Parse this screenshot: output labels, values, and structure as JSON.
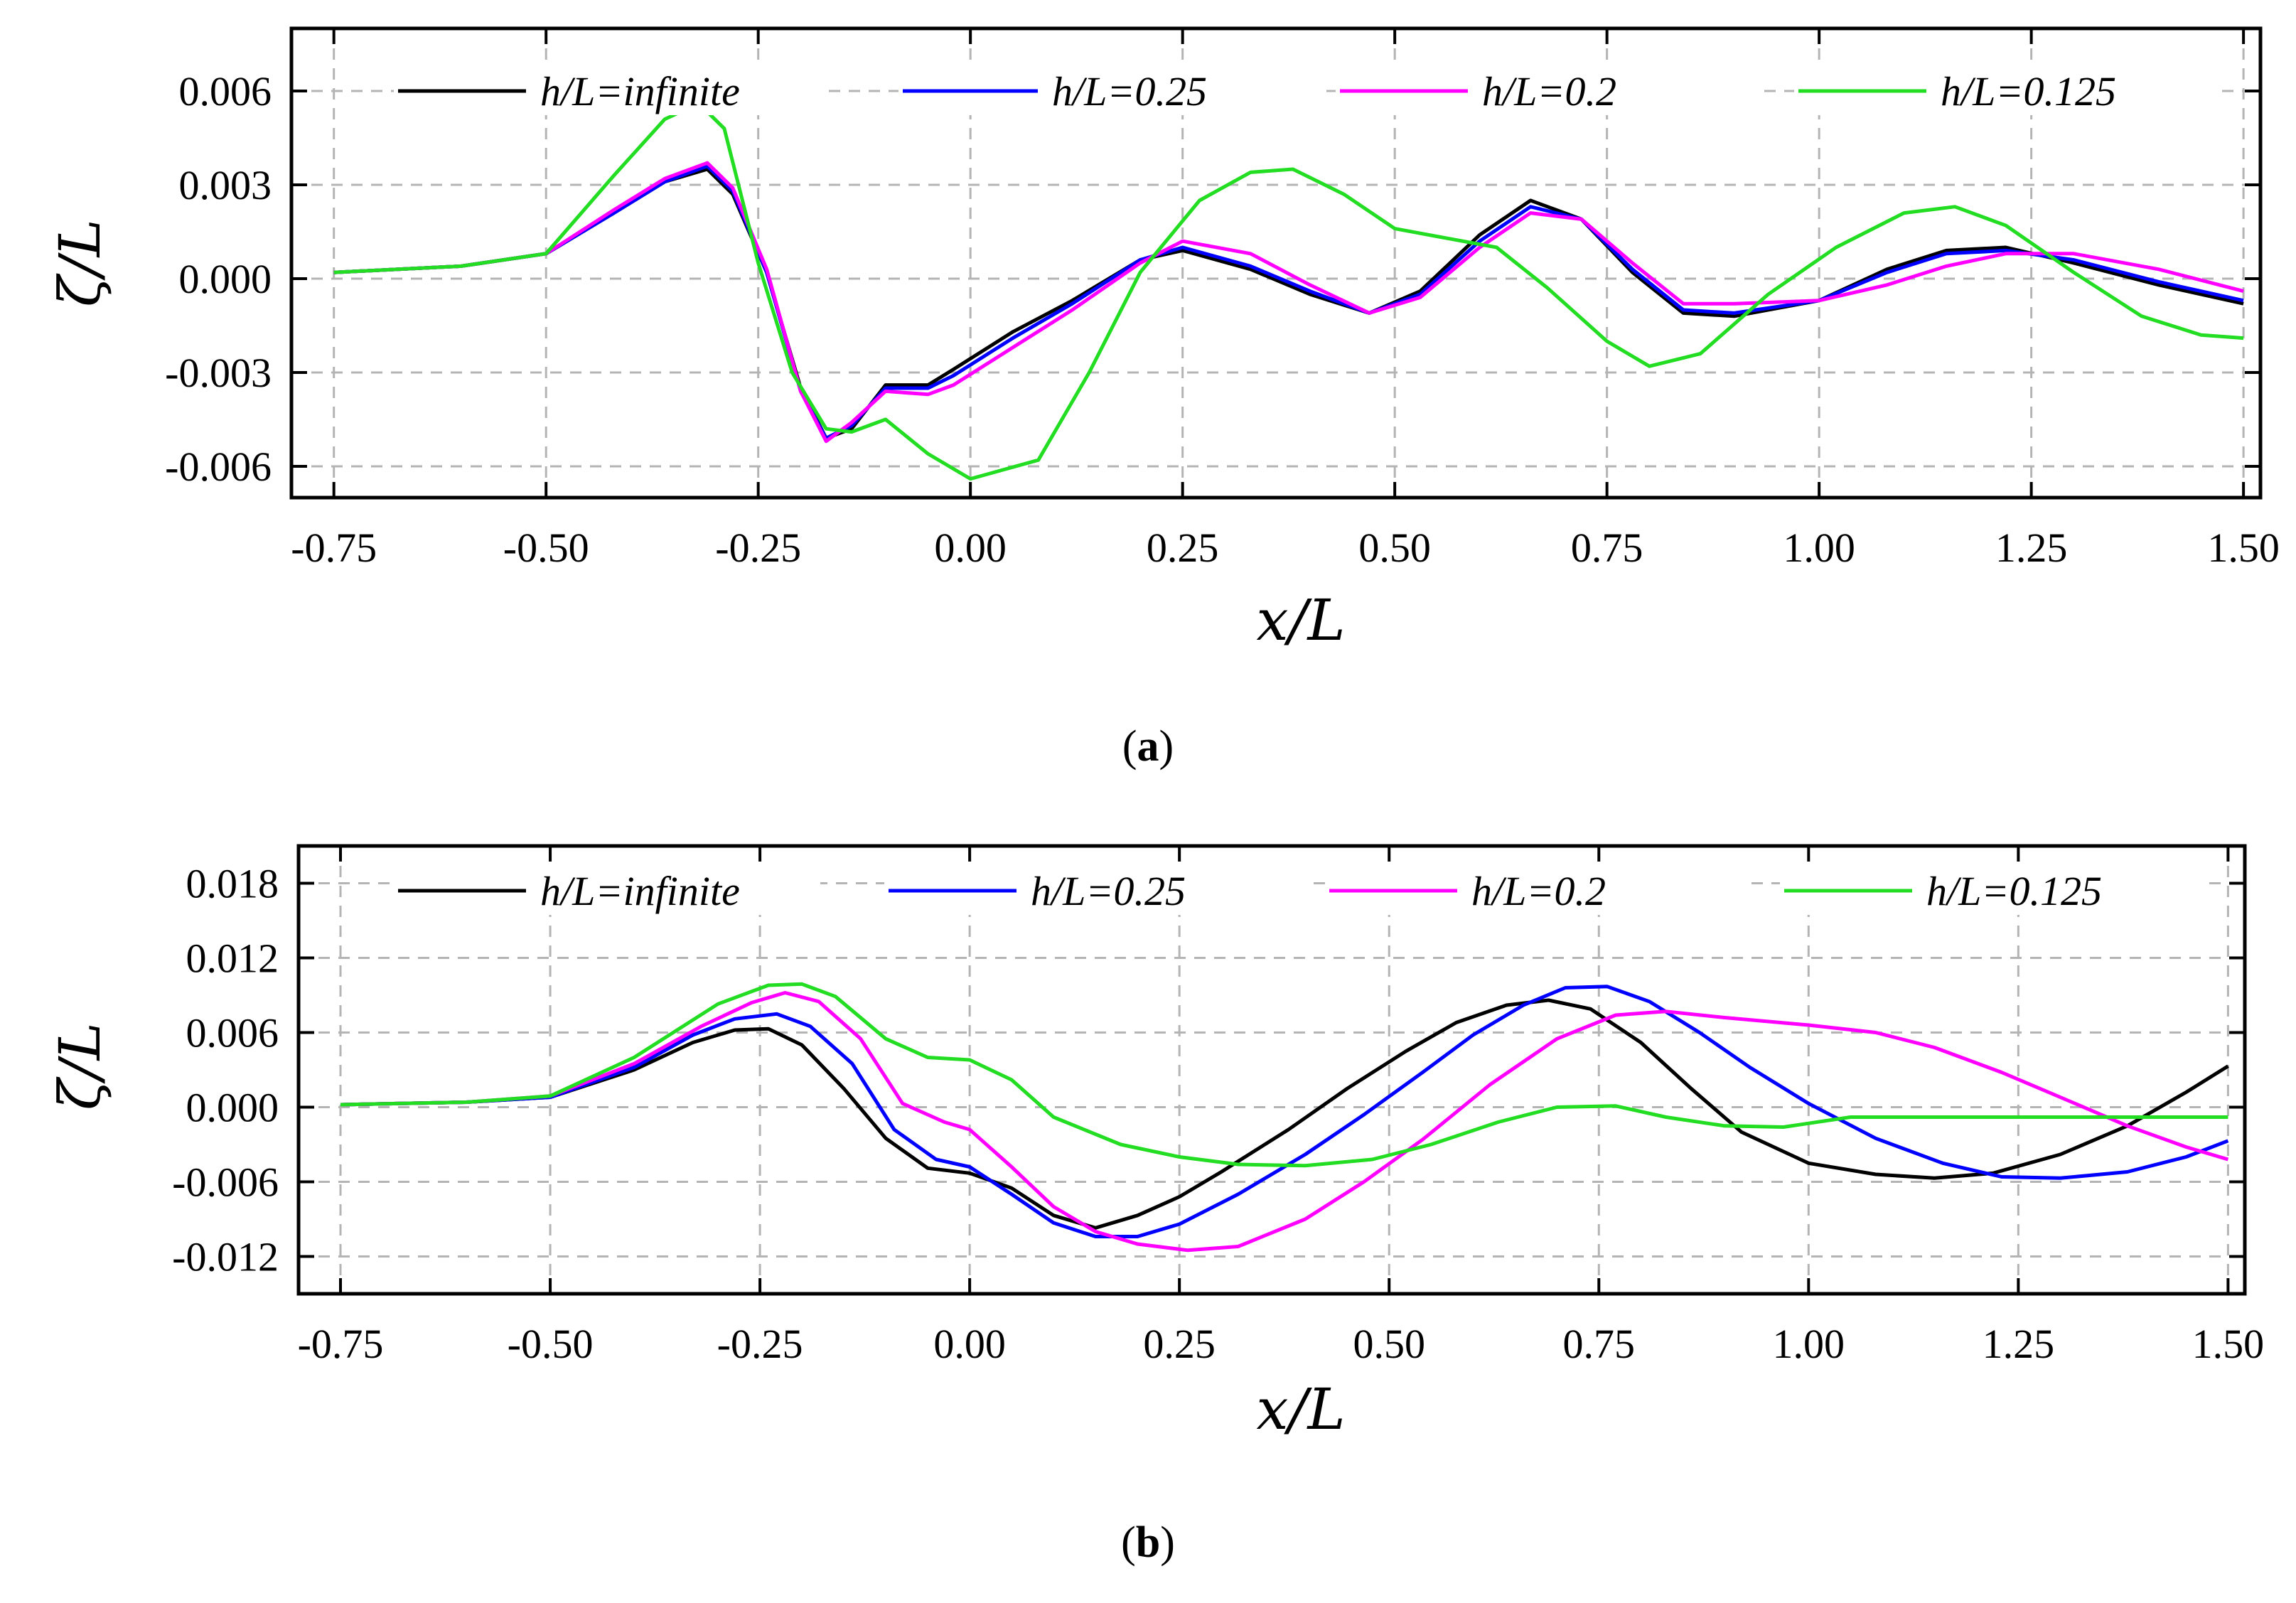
{
  "chart_data": [
    {
      "type": "line",
      "panel_label": "a",
      "xlabel": "x/L",
      "ylabel": "ζ/L",
      "xlim": [
        -0.8,
        1.52
      ],
      "ylim": [
        -0.007,
        0.008
      ],
      "xticks": [
        -0.75,
        -0.5,
        -0.25,
        0.0,
        0.25,
        0.5,
        0.75,
        1.0,
        1.25,
        1.5
      ],
      "xtick_labels": [
        "-0.75",
        "-0.50",
        "-0.25",
        "0.00",
        "0.25",
        "0.50",
        "0.75",
        "1.00",
        "1.25",
        "1.50"
      ],
      "yticks": [
        -0.006,
        -0.003,
        0.0,
        0.003,
        0.006
      ],
      "ytick_labels": [
        "-0.006",
        "-0.003",
        "0.000",
        "0.003",
        "0.006"
      ],
      "grid": true,
      "legend_position": "top",
      "series": [
        {
          "name": "h/L=infinite",
          "color": "#000000",
          "x": [
            -0.75,
            -0.6,
            -0.5,
            -0.42,
            -0.36,
            -0.31,
            -0.28,
            -0.24,
            -0.2,
            -0.17,
            -0.14,
            -0.1,
            -0.05,
            -0.02,
            0.05,
            0.12,
            0.2,
            0.25,
            0.33,
            0.4,
            0.47,
            0.53,
            0.6,
            0.66,
            0.72,
            0.78,
            0.84,
            0.9,
            1.0,
            1.08,
            1.15,
            1.22,
            1.3,
            1.4,
            1.5
          ],
          "y": [
            0.0002,
            0.0004,
            0.0008,
            0.0021,
            0.0031,
            0.0035,
            0.0027,
            0.0002,
            -0.0035,
            -0.0051,
            -0.0048,
            -0.0034,
            -0.0034,
            -0.0029,
            -0.0017,
            -0.0007,
            0.0006,
            0.0009,
            0.0003,
            -0.0005,
            -0.0011,
            -0.0004,
            0.0014,
            0.0025,
            0.0019,
            0.0002,
            -0.0011,
            -0.0012,
            -0.0007,
            0.0003,
            0.0009,
            0.001,
            0.0005,
            -0.0002,
            -0.0008
          ]
        },
        {
          "name": "h/L=0.25",
          "color": "#0000ff",
          "x": [
            -0.75,
            -0.6,
            -0.5,
            -0.42,
            -0.36,
            -0.31,
            -0.28,
            -0.24,
            -0.2,
            -0.17,
            -0.14,
            -0.1,
            -0.05,
            -0.02,
            0.05,
            0.12,
            0.2,
            0.25,
            0.33,
            0.4,
            0.47,
            0.53,
            0.6,
            0.66,
            0.72,
            0.78,
            0.84,
            0.9,
            1.0,
            1.08,
            1.15,
            1.22,
            1.3,
            1.4,
            1.5
          ],
          "y": [
            0.0002,
            0.0004,
            0.0008,
            0.0021,
            0.0031,
            0.0036,
            0.0028,
            0.0002,
            -0.0036,
            -0.0051,
            -0.0047,
            -0.0035,
            -0.0035,
            -0.0031,
            -0.0019,
            -0.0008,
            0.0006,
            0.001,
            0.0004,
            -0.0004,
            -0.0011,
            -0.0005,
            0.0012,
            0.0023,
            0.0019,
            0.0003,
            -0.001,
            -0.0011,
            -0.0007,
            0.0002,
            0.0008,
            0.0009,
            0.0006,
            -0.0001,
            -0.0007
          ]
        },
        {
          "name": "h/L=0.2",
          "color": "#ff00ff",
          "x": [
            -0.75,
            -0.6,
            -0.5,
            -0.42,
            -0.36,
            -0.31,
            -0.28,
            -0.24,
            -0.2,
            -0.17,
            -0.14,
            -0.1,
            -0.05,
            -0.02,
            0.05,
            0.12,
            0.2,
            0.25,
            0.33,
            0.4,
            0.47,
            0.53,
            0.6,
            0.66,
            0.72,
            0.78,
            0.84,
            0.9,
            1.0,
            1.08,
            1.15,
            1.22,
            1.3,
            1.4,
            1.5
          ],
          "y": [
            0.0002,
            0.0004,
            0.0008,
            0.0022,
            0.0032,
            0.0037,
            0.0029,
            0.0003,
            -0.0036,
            -0.0052,
            -0.0046,
            -0.0036,
            -0.0037,
            -0.0034,
            -0.0022,
            -0.001,
            0.0005,
            0.0012,
            0.0008,
            -0.0002,
            -0.0011,
            -0.0006,
            0.001,
            0.0021,
            0.0019,
            0.0005,
            -0.0008,
            -0.0008,
            -0.0007,
            -0.0002,
            0.0004,
            0.0008,
            0.0008,
            0.0003,
            -0.0004
          ]
        },
        {
          "name": "h/L=0.125",
          "color": "#22dd22",
          "x": [
            -0.75,
            -0.6,
            -0.5,
            -0.42,
            -0.36,
            -0.32,
            -0.29,
            -0.25,
            -0.21,
            -0.17,
            -0.14,
            -0.1,
            -0.05,
            0.0,
            0.08,
            0.14,
            0.2,
            0.27,
            0.33,
            0.38,
            0.44,
            0.5,
            0.56,
            0.62,
            0.68,
            0.75,
            0.8,
            0.86,
            0.94,
            1.02,
            1.1,
            1.16,
            1.22,
            1.3,
            1.38,
            1.45,
            1.5
          ],
          "y": [
            0.0002,
            0.0004,
            0.0008,
            0.0033,
            0.0051,
            0.0056,
            0.0048,
            0.0005,
            -0.003,
            -0.0048,
            -0.0049,
            -0.0045,
            -0.0056,
            -0.0064,
            -0.0058,
            -0.003,
            0.0002,
            0.0025,
            0.0034,
            0.0035,
            0.0027,
            0.0016,
            0.0013,
            0.001,
            -0.0003,
            -0.002,
            -0.0028,
            -0.0024,
            -0.0005,
            0.001,
            0.0021,
            0.0023,
            0.0017,
            0.0002,
            -0.0012,
            -0.0018,
            -0.0019
          ]
        }
      ]
    },
    {
      "type": "line",
      "panel_label": "b",
      "xlabel": "x/L",
      "ylabel": "ζ/L",
      "xlim": [
        -0.8,
        1.52
      ],
      "ylim": [
        -0.015,
        0.021
      ],
      "xticks": [
        -0.75,
        -0.5,
        -0.25,
        0.0,
        0.25,
        0.5,
        0.75,
        1.0,
        1.25,
        1.5
      ],
      "xtick_labels": [
        "-0.75",
        "-0.50",
        "-0.25",
        "0.00",
        "0.25",
        "0.50",
        "0.75",
        "1.00",
        "1.25",
        "1.50"
      ],
      "yticks": [
        -0.012,
        -0.006,
        0.0,
        0.006,
        0.012,
        0.018
      ],
      "ytick_labels": [
        "-0.012",
        "-0.006",
        "0.000",
        "0.006",
        "0.012",
        "0.018"
      ],
      "grid": true,
      "legend_position": "top",
      "series": [
        {
          "name": "h/L=infinite",
          "color": "#000000",
          "x": [
            -0.75,
            -0.6,
            -0.5,
            -0.4,
            -0.33,
            -0.28,
            -0.24,
            -0.2,
            -0.15,
            -0.1,
            -0.05,
            0.0,
            0.05,
            0.1,
            0.15,
            0.2,
            0.25,
            0.3,
            0.38,
            0.45,
            0.52,
            0.58,
            0.64,
            0.69,
            0.74,
            0.8,
            0.86,
            0.92,
            1.0,
            1.08,
            1.15,
            1.22,
            1.3,
            1.38,
            1.45,
            1.5
          ],
          "y": [
            0.0002,
            0.0004,
            0.0008,
            0.003,
            0.0052,
            0.0062,
            0.0063,
            0.005,
            0.0015,
            -0.0025,
            -0.0049,
            -0.0053,
            -0.0065,
            -0.0087,
            -0.0097,
            -0.0087,
            -0.0072,
            -0.0052,
            -0.0018,
            0.0015,
            0.0045,
            0.0068,
            0.0082,
            0.0086,
            0.0079,
            0.0052,
            0.0015,
            -0.002,
            -0.0045,
            -0.0054,
            -0.0057,
            -0.0053,
            -0.0038,
            -0.0015,
            0.0012,
            0.0033
          ]
        },
        {
          "name": "h/L=0.25",
          "color": "#0000ff",
          "x": [
            -0.75,
            -0.6,
            -0.5,
            -0.4,
            -0.33,
            -0.28,
            -0.23,
            -0.19,
            -0.14,
            -0.09,
            -0.04,
            0.0,
            0.05,
            0.1,
            0.15,
            0.2,
            0.25,
            0.32,
            0.4,
            0.47,
            0.54,
            0.6,
            0.66,
            0.71,
            0.76,
            0.81,
            0.87,
            0.93,
            1.0,
            1.08,
            1.16,
            1.23,
            1.3,
            1.38,
            1.45,
            1.5
          ],
          "y": [
            0.0002,
            0.0004,
            0.0008,
            0.0032,
            0.0058,
            0.0071,
            0.0075,
            0.0065,
            0.0035,
            -0.0018,
            -0.0042,
            -0.0048,
            -0.007,
            -0.0093,
            -0.0104,
            -0.0104,
            -0.0094,
            -0.007,
            -0.0038,
            -0.0006,
            0.0028,
            0.0058,
            0.0082,
            0.0096,
            0.0097,
            0.0085,
            0.006,
            0.0032,
            0.0003,
            -0.0025,
            -0.0045,
            -0.0056,
            -0.0057,
            -0.0052,
            -0.004,
            -0.0027
          ]
        },
        {
          "name": "h/L=0.2",
          "color": "#ff00ff",
          "x": [
            -0.75,
            -0.6,
            -0.5,
            -0.4,
            -0.32,
            -0.26,
            -0.22,
            -0.18,
            -0.13,
            -0.08,
            -0.03,
            0.0,
            0.05,
            0.1,
            0.15,
            0.2,
            0.26,
            0.32,
            0.4,
            0.47,
            0.54,
            0.62,
            0.7,
            0.77,
            0.83,
            0.9,
            1.0,
            1.08,
            1.15,
            1.23,
            1.3,
            1.38,
            1.45,
            1.5
          ],
          "y": [
            0.0002,
            0.0004,
            0.0009,
            0.0035,
            0.0065,
            0.0084,
            0.0092,
            0.0085,
            0.0055,
            0.0003,
            -0.0012,
            -0.0018,
            -0.0048,
            -0.008,
            -0.01,
            -0.011,
            -0.0115,
            -0.0112,
            -0.009,
            -0.006,
            -0.0026,
            0.0018,
            0.0055,
            0.0074,
            0.0077,
            0.0072,
            0.0066,
            0.006,
            0.0048,
            0.0028,
            0.0008,
            -0.0015,
            -0.0032,
            -0.0042
          ]
        },
        {
          "name": "h/L=0.125",
          "color": "#22dd22",
          "x": [
            -0.75,
            -0.6,
            -0.5,
            -0.4,
            -0.3,
            -0.24,
            -0.2,
            -0.16,
            -0.1,
            -0.05,
            0.0,
            0.05,
            0.1,
            0.18,
            0.25,
            0.32,
            0.4,
            0.48,
            0.55,
            0.63,
            0.7,
            0.77,
            0.83,
            0.9,
            0.97,
            1.05,
            1.15,
            1.25,
            1.35,
            1.45,
            1.5
          ],
          "y": [
            0.0002,
            0.0004,
            0.0009,
            0.004,
            0.0083,
            0.0098,
            0.0099,
            0.0089,
            0.0055,
            0.004,
            0.0038,
            0.0022,
            -0.0008,
            -0.003,
            -0.004,
            -0.0046,
            -0.0047,
            -0.0042,
            -0.003,
            -0.0012,
            0.0,
            0.0001,
            -0.0008,
            -0.0015,
            -0.0016,
            -0.0008,
            -0.0008,
            -0.0008,
            -0.0008,
            -0.0008,
            -0.0008
          ]
        }
      ]
    }
  ]
}
